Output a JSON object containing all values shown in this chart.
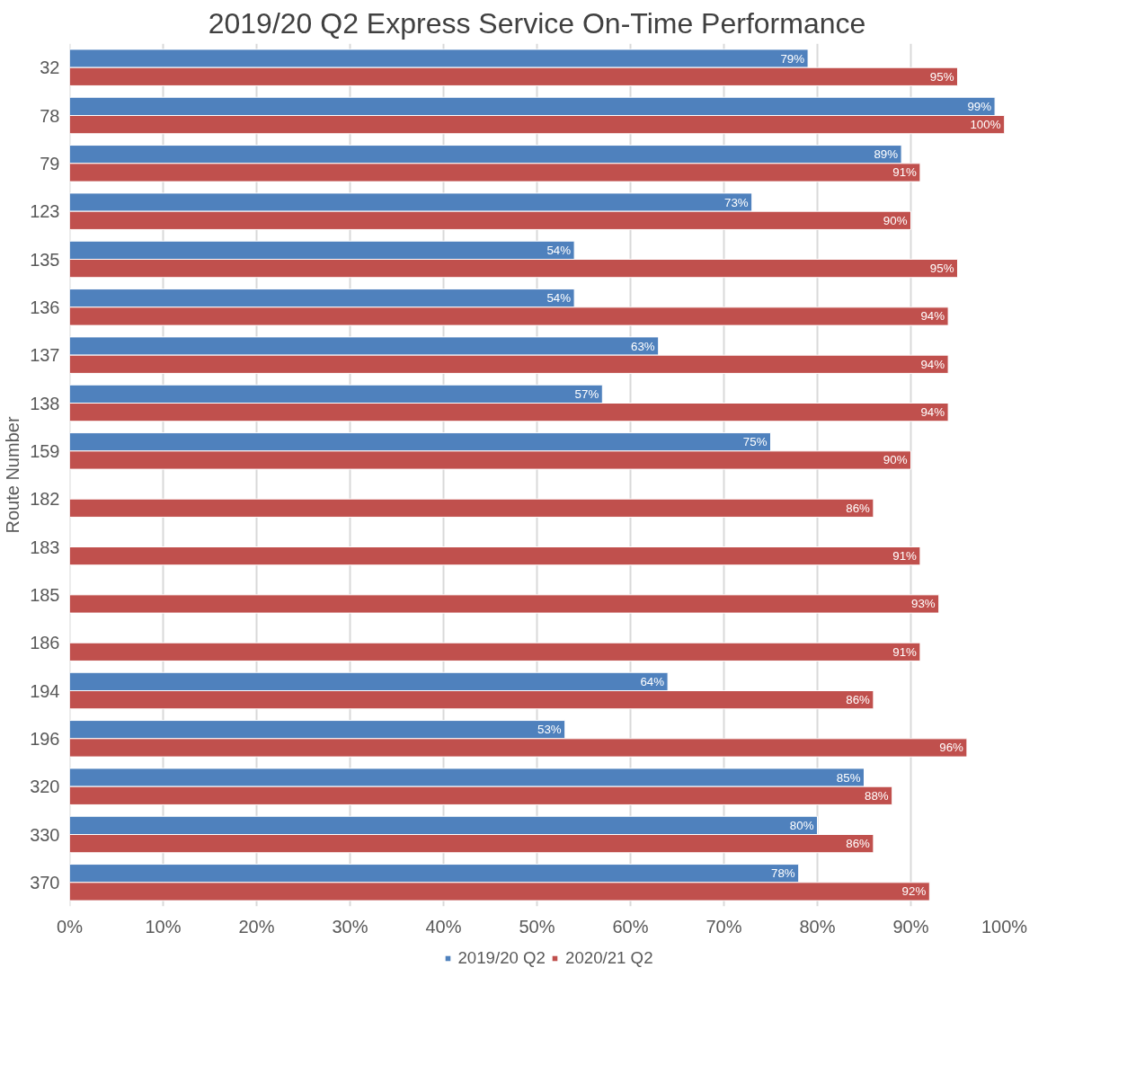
{
  "chart_data": {
    "type": "bar",
    "orientation": "horizontal",
    "title": "2019/20 Q2 Express Service On-Time Performance",
    "ylabel": "Route Number",
    "categories": [
      "32",
      "78",
      "79",
      "123",
      "135",
      "136",
      "137",
      "138",
      "159",
      "182",
      "183",
      "185",
      "186",
      "194",
      "196",
      "320",
      "330",
      "370"
    ],
    "series": [
      {
        "name": "2019/20 Q2",
        "color": "#4f81bd",
        "values": [
          79,
          99,
          89,
          73,
          54,
          54,
          63,
          57,
          75,
          null,
          null,
          null,
          null,
          64,
          53,
          85,
          80,
          78
        ],
        "value_labels": [
          "79%",
          "99%",
          "89%",
          "73%",
          "54%",
          "54%",
          "63%",
          "57%",
          "75%",
          null,
          null,
          null,
          null,
          "64%",
          "53%",
          "85%",
          "80%",
          "78%"
        ]
      },
      {
        "name": "2020/21 Q2",
        "color": "#c0504d",
        "values": [
          95,
          100,
          91,
          90,
          95,
          94,
          94,
          94,
          90,
          86,
          91,
          93,
          91,
          86,
          96,
          88,
          86,
          92
        ],
        "value_labels": [
          "95%",
          "100%",
          "91%",
          "90%",
          "95%",
          "94%",
          "94%",
          "94%",
          "90%",
          "86%",
          "91%",
          "93%",
          "91%",
          "86%",
          "96%",
          "88%",
          "86%",
          "92%"
        ]
      }
    ],
    "xlim": [
      0,
      100
    ],
    "xticks": [
      {
        "value": 0,
        "label": "0%"
      },
      {
        "value": 10,
        "label": "10%"
      },
      {
        "value": 20,
        "label": "20%"
      },
      {
        "value": 30,
        "label": "30%"
      },
      {
        "value": 40,
        "label": "40%"
      },
      {
        "value": 50,
        "label": "50%"
      },
      {
        "value": 60,
        "label": "60%"
      },
      {
        "value": 70,
        "label": "70%"
      },
      {
        "value": 80,
        "label": "80%"
      },
      {
        "value": 90,
        "label": "90%"
      },
      {
        "value": 100,
        "label": "100%"
      }
    ],
    "grid": "x",
    "legend": "bottom"
  }
}
